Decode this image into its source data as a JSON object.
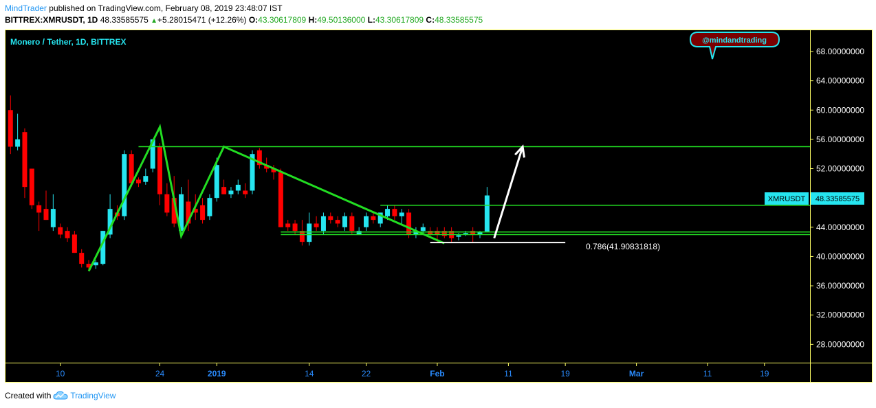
{
  "header": {
    "author": "MindTrader",
    "published_text": "published on TradingView.com, February 08, 2019 23:48:07 IST",
    "symbol": "BITTREX:XMRUSDT, 1D",
    "last": "48.33585575",
    "change": "+5.28015471 (+12.26%)",
    "o_label": "O:",
    "o_value": "43.30617809",
    "h_label": "H:",
    "h_value": "49.50136000",
    "l_label": "L:",
    "l_value": "43.30617809",
    "c_label": "C:",
    "c_value": "48.33585575"
  },
  "chart_title": "Monero / Tether, 1D, BITTREX",
  "watermark": "@mindandtrading",
  "price_tag": {
    "label": "XMRUSDT",
    "value": "48.33585575"
  },
  "fib_label": "0.786(41.90831818)",
  "footer": {
    "created_with": "Created with",
    "brand": "TradingView"
  },
  "colors": {
    "background": "#000000",
    "axis_border": "#ffff66",
    "up_candle": "#26e5f0",
    "down_candle": "#ff0000",
    "drawing_green": "#22dd22",
    "axis_text": "#ffffff",
    "axis_label_blue": "#2a8cff"
  },
  "chart_data": {
    "type": "candlestick",
    "title": "Monero / Tether, 1D, BITTREX",
    "ylim": [
      25.5,
      71.0
    ],
    "y_ticks": [
      "68.00000000",
      "64.00000000",
      "60.00000000",
      "56.00000000",
      "52.00000000",
      "48.00000000",
      "44.00000000",
      "40.00000000",
      "36.00000000",
      "32.00000000",
      "28.00000000"
    ],
    "x_ticks": [
      {
        "label": "10",
        "day": -22,
        "bold": false
      },
      {
        "label": "24",
        "day": -8,
        "bold": false
      },
      {
        "label": "2019",
        "day": 0,
        "bold": true
      },
      {
        "label": "14",
        "day": 13,
        "bold": false
      },
      {
        "label": "22",
        "day": 21,
        "bold": false
      },
      {
        "label": "Feb",
        "day": 31,
        "bold": true
      },
      {
        "label": "11",
        "day": 41,
        "bold": false
      },
      {
        "label": "19",
        "day": 49,
        "bold": false
      },
      {
        "label": "Mar",
        "day": 59,
        "bold": true
      },
      {
        "label": "11",
        "day": 69,
        "bold": false
      },
      {
        "label": "19",
        "day": 77,
        "bold": false
      }
    ],
    "x_range_days": [
      -29.8,
      83.4
    ],
    "candles": [
      {
        "d": -29,
        "o": 60.0,
        "h": 62.0,
        "l": 54.0,
        "c": 55.0
      },
      {
        "d": -28,
        "o": 55.0,
        "h": 59.5,
        "l": 54.5,
        "c": 56.0
      },
      {
        "d": -27,
        "o": 57.0,
        "h": 57.5,
        "l": 48.0,
        "c": 49.5
      },
      {
        "d": -26,
        "o": 52.0,
        "h": 52.0,
        "l": 46.5,
        "c": 47.0
      },
      {
        "d": -25,
        "o": 47.0,
        "h": 47.5,
        "l": 43.5,
        "c": 46.0
      },
      {
        "d": -24,
        "o": 46.5,
        "h": 49.0,
        "l": 45.0,
        "c": 45.0
      },
      {
        "d": -23,
        "o": 44.0,
        "h": 48.5,
        "l": 43.5,
        "c": 46.5
      },
      {
        "d": -22,
        "o": 44.0,
        "h": 44.5,
        "l": 42.5,
        "c": 43.0
      },
      {
        "d": -21,
        "o": 43.5,
        "h": 44.0,
        "l": 42.0,
        "c": 42.5
      },
      {
        "d": -20,
        "o": 43.0,
        "h": 43.5,
        "l": 40.5,
        "c": 40.5
      },
      {
        "d": -19,
        "o": 40.5,
        "h": 41.0,
        "l": 38.5,
        "c": 39.0
      },
      {
        "d": -18,
        "o": 39.0,
        "h": 39.5,
        "l": 38.0,
        "c": 38.5
      },
      {
        "d": -17,
        "o": 38.8,
        "h": 39.5,
        "l": 38.3,
        "c": 39.2
      },
      {
        "d": -16,
        "o": 39.0,
        "h": 43.5,
        "l": 38.8,
        "c": 43.5
      },
      {
        "d": -15,
        "o": 43.0,
        "h": 48.5,
        "l": 42.5,
        "c": 46.5
      },
      {
        "d": -14,
        "o": 46.0,
        "h": 47.0,
        "l": 45.0,
        "c": 45.5
      },
      {
        "d": -13,
        "o": 45.5,
        "h": 54.5,
        "l": 45.0,
        "c": 54.0
      },
      {
        "d": -12,
        "o": 54.0,
        "h": 54.5,
        "l": 49.5,
        "c": 50.0
      },
      {
        "d": -11,
        "o": 50.5,
        "h": 50.8,
        "l": 49.5,
        "c": 50.0
      },
      {
        "d": -10,
        "o": 50.2,
        "h": 52.0,
        "l": 49.8,
        "c": 51.0
      },
      {
        "d": -9,
        "o": 52.0,
        "h": 56.0,
        "l": 51.5,
        "c": 56.0
      },
      {
        "d": -8,
        "o": 55.0,
        "h": 55.5,
        "l": 47.0,
        "c": 48.5
      },
      {
        "d": -7,
        "o": 48.5,
        "h": 50.0,
        "l": 45.5,
        "c": 46.0
      },
      {
        "d": -6,
        "o": 48.0,
        "h": 51.0,
        "l": 44.0,
        "c": 44.5
      },
      {
        "d": -5,
        "o": 43.5,
        "h": 49.5,
        "l": 43.0,
        "c": 48.5
      },
      {
        "d": -4,
        "o": 47.5,
        "h": 50.5,
        "l": 43.5,
        "c": 44.5
      },
      {
        "d": -3,
        "o": 46.5,
        "h": 48.5,
        "l": 45.0,
        "c": 46.0
      },
      {
        "d": -2,
        "o": 47.0,
        "h": 48.0,
        "l": 44.5,
        "c": 45.0
      },
      {
        "d": -1,
        "o": 45.5,
        "h": 48.5,
        "l": 45.0,
        "c": 48.0
      },
      {
        "d": 0,
        "o": 48.0,
        "h": 53.5,
        "l": 47.5,
        "c": 52.5
      },
      {
        "d": 1,
        "o": 49.5,
        "h": 50.5,
        "l": 48.5,
        "c": 48.5
      },
      {
        "d": 2,
        "o": 48.5,
        "h": 49.5,
        "l": 48.0,
        "c": 49.0
      },
      {
        "d": 3,
        "o": 49.0,
        "h": 50.5,
        "l": 48.5,
        "c": 49.8
      },
      {
        "d": 4,
        "o": 49.0,
        "h": 50.0,
        "l": 48.0,
        "c": 48.5
      },
      {
        "d": 5,
        "o": 49.0,
        "h": 54.5,
        "l": 48.5,
        "c": 54.0
      },
      {
        "d": 6,
        "o": 54.5,
        "h": 54.8,
        "l": 52.0,
        "c": 52.5
      },
      {
        "d": 7,
        "o": 52.5,
        "h": 53.5,
        "l": 51.5,
        "c": 52.0
      },
      {
        "d": 8,
        "o": 52.0,
        "h": 52.5,
        "l": 50.5,
        "c": 51.5
      },
      {
        "d": 9,
        "o": 51.5,
        "h": 52.0,
        "l": 44.0,
        "c": 44.0
      },
      {
        "d": 10,
        "o": 44.5,
        "h": 45.0,
        "l": 43.5,
        "c": 44.0
      },
      {
        "d": 11,
        "o": 44.5,
        "h": 45.0,
        "l": 43.0,
        "c": 43.5
      },
      {
        "d": 12,
        "o": 43.5,
        "h": 45.0,
        "l": 41.5,
        "c": 42.0
      },
      {
        "d": 13,
        "o": 42.0,
        "h": 46.0,
        "l": 41.5,
        "c": 44.5
      },
      {
        "d": 14,
        "o": 44.5,
        "h": 45.5,
        "l": 43.5,
        "c": 44.0
      },
      {
        "d": 15,
        "o": 43.5,
        "h": 46.0,
        "l": 43.0,
        "c": 45.5
      },
      {
        "d": 16,
        "o": 45.5,
        "h": 46.0,
        "l": 44.5,
        "c": 45.0
      },
      {
        "d": 17,
        "o": 45.0,
        "h": 45.5,
        "l": 44.0,
        "c": 44.5
      },
      {
        "d": 18,
        "o": 44.0,
        "h": 46.0,
        "l": 43.5,
        "c": 45.5
      },
      {
        "d": 19,
        "o": 45.5,
        "h": 46.0,
        "l": 43.0,
        "c": 43.5
      },
      {
        "d": 20,
        "o": 43.0,
        "h": 44.0,
        "l": 43.0,
        "c": 43.5
      },
      {
        "d": 21,
        "o": 44.0,
        "h": 46.0,
        "l": 43.5,
        "c": 45.5
      },
      {
        "d": 22,
        "o": 45.5,
        "h": 46.0,
        "l": 44.5,
        "c": 45.0
      },
      {
        "d": 23,
        "o": 44.5,
        "h": 46.0,
        "l": 44.0,
        "c": 46.0
      },
      {
        "d": 24,
        "o": 45.5,
        "h": 47.0,
        "l": 45.0,
        "c": 46.5
      },
      {
        "d": 25,
        "o": 46.5,
        "h": 47.0,
        "l": 45.0,
        "c": 45.5
      },
      {
        "d": 26,
        "o": 45.5,
        "h": 46.5,
        "l": 44.5,
        "c": 46.0
      },
      {
        "d": 27,
        "o": 46.0,
        "h": 46.5,
        "l": 42.5,
        "c": 43.0
      },
      {
        "d": 28,
        "o": 43.0,
        "h": 44.0,
        "l": 42.5,
        "c": 43.5
      },
      {
        "d": 29,
        "o": 43.5,
        "h": 44.5,
        "l": 43.0,
        "c": 44.0
      },
      {
        "d": 30,
        "o": 43.5,
        "h": 44.0,
        "l": 42.5,
        "c": 43.0
      },
      {
        "d": 31,
        "o": 43.5,
        "h": 44.0,
        "l": 42.0,
        "c": 43.0
      },
      {
        "d": 32,
        "o": 43.5,
        "h": 44.0,
        "l": 42.5,
        "c": 42.8
      },
      {
        "d": 33,
        "o": 43.5,
        "h": 44.0,
        "l": 42.0,
        "c": 42.5
      },
      {
        "d": 34,
        "o": 42.7,
        "h": 43.2,
        "l": 42.2,
        "c": 42.9
      },
      {
        "d": 35,
        "o": 43.0,
        "h": 43.5,
        "l": 42.8,
        "c": 43.2
      },
      {
        "d": 36,
        "o": 43.5,
        "h": 44.0,
        "l": 42.0,
        "c": 43.0
      },
      {
        "d": 37,
        "o": 43.0,
        "h": 43.5,
        "l": 42.5,
        "c": 43.3
      },
      {
        "d": 38,
        "o": 43.3,
        "h": 49.5,
        "l": 43.3,
        "c": 48.34
      }
    ],
    "drawings": {
      "zigzag": [
        [
          -18,
          38.0
        ],
        [
          -8,
          57.7
        ],
        [
          -5,
          42.8
        ],
        [
          1,
          55.0
        ],
        [
          32,
          41.8
        ]
      ],
      "hlines": [
        {
          "y": 55.0,
          "from": -11,
          "to": 83.4
        },
        {
          "y": 47.0,
          "from": 23,
          "to": 83.4
        },
        {
          "y": 43.35,
          "from": 9,
          "to": 83.4
        },
        {
          "y": 43.0,
          "from": 9,
          "to": 83.4
        }
      ],
      "fib_line": {
        "y": 41.91,
        "from": 30,
        "to": 49
      },
      "arrow": {
        "from": [
          39,
          42.5
        ],
        "to": [
          43,
          55.0
        ]
      }
    }
  }
}
